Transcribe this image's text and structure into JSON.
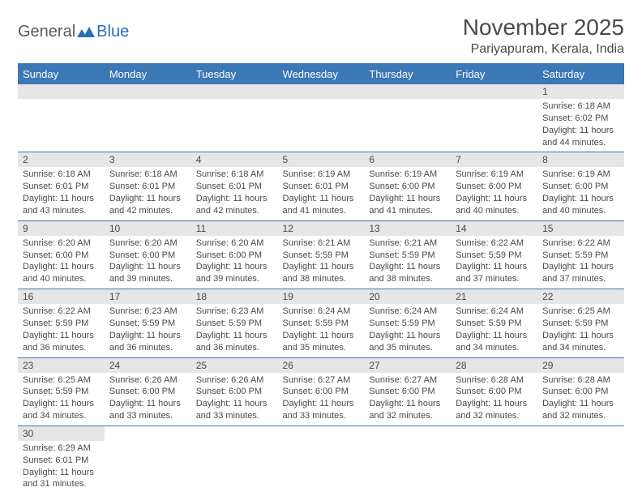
{
  "logo": {
    "text1": "General",
    "text2": "Blue"
  },
  "header": {
    "title": "November 2025",
    "location": "Pariyapuram, Kerala, India"
  },
  "colors": {
    "headerBg": "#3b78b5",
    "headerText": "#ffffff",
    "dayBg": "#e6e6e6",
    "border": "#3b78b5",
    "text": "#4a4a4a"
  },
  "dayHeaders": [
    "Sunday",
    "Monday",
    "Tuesday",
    "Wednesday",
    "Thursday",
    "Friday",
    "Saturday"
  ],
  "weeks": [
    [
      null,
      null,
      null,
      null,
      null,
      null,
      {
        "n": "1",
        "sr": "Sunrise: 6:18 AM",
        "ss": "Sunset: 6:02 PM",
        "dl": "Daylight: 11 hours and 44 minutes."
      }
    ],
    [
      {
        "n": "2",
        "sr": "Sunrise: 6:18 AM",
        "ss": "Sunset: 6:01 PM",
        "dl": "Daylight: 11 hours and 43 minutes."
      },
      {
        "n": "3",
        "sr": "Sunrise: 6:18 AM",
        "ss": "Sunset: 6:01 PM",
        "dl": "Daylight: 11 hours and 42 minutes."
      },
      {
        "n": "4",
        "sr": "Sunrise: 6:18 AM",
        "ss": "Sunset: 6:01 PM",
        "dl": "Daylight: 11 hours and 42 minutes."
      },
      {
        "n": "5",
        "sr": "Sunrise: 6:19 AM",
        "ss": "Sunset: 6:01 PM",
        "dl": "Daylight: 11 hours and 41 minutes."
      },
      {
        "n": "6",
        "sr": "Sunrise: 6:19 AM",
        "ss": "Sunset: 6:00 PM",
        "dl": "Daylight: 11 hours and 41 minutes."
      },
      {
        "n": "7",
        "sr": "Sunrise: 6:19 AM",
        "ss": "Sunset: 6:00 PM",
        "dl": "Daylight: 11 hours and 40 minutes."
      },
      {
        "n": "8",
        "sr": "Sunrise: 6:19 AM",
        "ss": "Sunset: 6:00 PM",
        "dl": "Daylight: 11 hours and 40 minutes."
      }
    ],
    [
      {
        "n": "9",
        "sr": "Sunrise: 6:20 AM",
        "ss": "Sunset: 6:00 PM",
        "dl": "Daylight: 11 hours and 40 minutes."
      },
      {
        "n": "10",
        "sr": "Sunrise: 6:20 AM",
        "ss": "Sunset: 6:00 PM",
        "dl": "Daylight: 11 hours and 39 minutes."
      },
      {
        "n": "11",
        "sr": "Sunrise: 6:20 AM",
        "ss": "Sunset: 6:00 PM",
        "dl": "Daylight: 11 hours and 39 minutes."
      },
      {
        "n": "12",
        "sr": "Sunrise: 6:21 AM",
        "ss": "Sunset: 5:59 PM",
        "dl": "Daylight: 11 hours and 38 minutes."
      },
      {
        "n": "13",
        "sr": "Sunrise: 6:21 AM",
        "ss": "Sunset: 5:59 PM",
        "dl": "Daylight: 11 hours and 38 minutes."
      },
      {
        "n": "14",
        "sr": "Sunrise: 6:22 AM",
        "ss": "Sunset: 5:59 PM",
        "dl": "Daylight: 11 hours and 37 minutes."
      },
      {
        "n": "15",
        "sr": "Sunrise: 6:22 AM",
        "ss": "Sunset: 5:59 PM",
        "dl": "Daylight: 11 hours and 37 minutes."
      }
    ],
    [
      {
        "n": "16",
        "sr": "Sunrise: 6:22 AM",
        "ss": "Sunset: 5:59 PM",
        "dl": "Daylight: 11 hours and 36 minutes."
      },
      {
        "n": "17",
        "sr": "Sunrise: 6:23 AM",
        "ss": "Sunset: 5:59 PM",
        "dl": "Daylight: 11 hours and 36 minutes."
      },
      {
        "n": "18",
        "sr": "Sunrise: 6:23 AM",
        "ss": "Sunset: 5:59 PM",
        "dl": "Daylight: 11 hours and 36 minutes."
      },
      {
        "n": "19",
        "sr": "Sunrise: 6:24 AM",
        "ss": "Sunset: 5:59 PM",
        "dl": "Daylight: 11 hours and 35 minutes."
      },
      {
        "n": "20",
        "sr": "Sunrise: 6:24 AM",
        "ss": "Sunset: 5:59 PM",
        "dl": "Daylight: 11 hours and 35 minutes."
      },
      {
        "n": "21",
        "sr": "Sunrise: 6:24 AM",
        "ss": "Sunset: 5:59 PM",
        "dl": "Daylight: 11 hours and 34 minutes."
      },
      {
        "n": "22",
        "sr": "Sunrise: 6:25 AM",
        "ss": "Sunset: 5:59 PM",
        "dl": "Daylight: 11 hours and 34 minutes."
      }
    ],
    [
      {
        "n": "23",
        "sr": "Sunrise: 6:25 AM",
        "ss": "Sunset: 5:59 PM",
        "dl": "Daylight: 11 hours and 34 minutes."
      },
      {
        "n": "24",
        "sr": "Sunrise: 6:26 AM",
        "ss": "Sunset: 6:00 PM",
        "dl": "Daylight: 11 hours and 33 minutes."
      },
      {
        "n": "25",
        "sr": "Sunrise: 6:26 AM",
        "ss": "Sunset: 6:00 PM",
        "dl": "Daylight: 11 hours and 33 minutes."
      },
      {
        "n": "26",
        "sr": "Sunrise: 6:27 AM",
        "ss": "Sunset: 6:00 PM",
        "dl": "Daylight: 11 hours and 33 minutes."
      },
      {
        "n": "27",
        "sr": "Sunrise: 6:27 AM",
        "ss": "Sunset: 6:00 PM",
        "dl": "Daylight: 11 hours and 32 minutes."
      },
      {
        "n": "28",
        "sr": "Sunrise: 6:28 AM",
        "ss": "Sunset: 6:00 PM",
        "dl": "Daylight: 11 hours and 32 minutes."
      },
      {
        "n": "29",
        "sr": "Sunrise: 6:28 AM",
        "ss": "Sunset: 6:00 PM",
        "dl": "Daylight: 11 hours and 32 minutes."
      }
    ],
    [
      {
        "n": "30",
        "sr": "Sunrise: 6:29 AM",
        "ss": "Sunset: 6:01 PM",
        "dl": "Daylight: 11 hours and 31 minutes."
      },
      null,
      null,
      null,
      null,
      null,
      null
    ]
  ]
}
